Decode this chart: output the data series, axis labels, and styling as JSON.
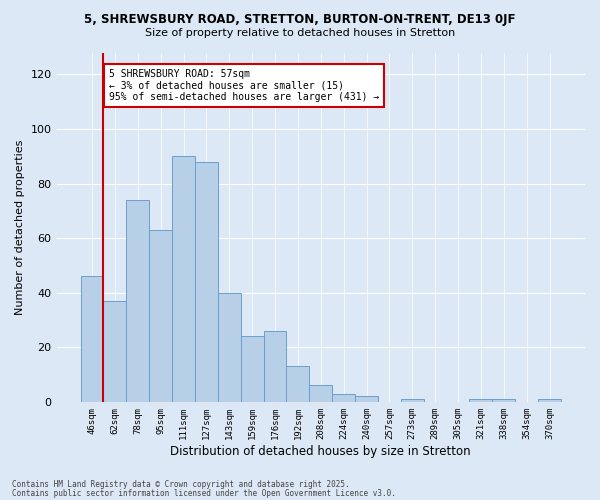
{
  "title1": "5, SHREWSBURY ROAD, STRETTON, BURTON-ON-TRENT, DE13 0JF",
  "title2": "Size of property relative to detached houses in Stretton",
  "xlabel": "Distribution of detached houses by size in Stretton",
  "ylabel": "Number of detached properties",
  "categories": [
    "46sqm",
    "62sqm",
    "78sqm",
    "95sqm",
    "111sqm",
    "127sqm",
    "143sqm",
    "159sqm",
    "176sqm",
    "192sqm",
    "208sqm",
    "224sqm",
    "240sqm",
    "257sqm",
    "273sqm",
    "289sqm",
    "305sqm",
    "321sqm",
    "338sqm",
    "354sqm",
    "370sqm"
  ],
  "values": [
    46,
    37,
    74,
    63,
    90,
    88,
    40,
    24,
    26,
    13,
    6,
    3,
    2,
    0,
    1,
    0,
    0,
    1,
    1,
    0,
    1
  ],
  "bar_color": "#b8cfe8",
  "bar_edge_color": "#6aa0cc",
  "vline_x": 0.5,
  "vline_color": "#cc0000",
  "annotation_text": "5 SHREWSBURY ROAD: 57sqm\n← 3% of detached houses are smaller (15)\n95% of semi-detached houses are larger (431) →",
  "annotation_box_color": "#ffffff",
  "annotation_box_edge": "#cc0000",
  "ylim": [
    0,
    128
  ],
  "yticks": [
    0,
    20,
    40,
    60,
    80,
    100,
    120
  ],
  "footer1": "Contains HM Land Registry data © Crown copyright and database right 2025.",
  "footer2": "Contains public sector information licensed under the Open Government Licence v3.0.",
  "background_color": "#dce8f5",
  "plot_background": "#dce8f5",
  "fig_width": 6.0,
  "fig_height": 5.0,
  "fig_dpi": 100
}
